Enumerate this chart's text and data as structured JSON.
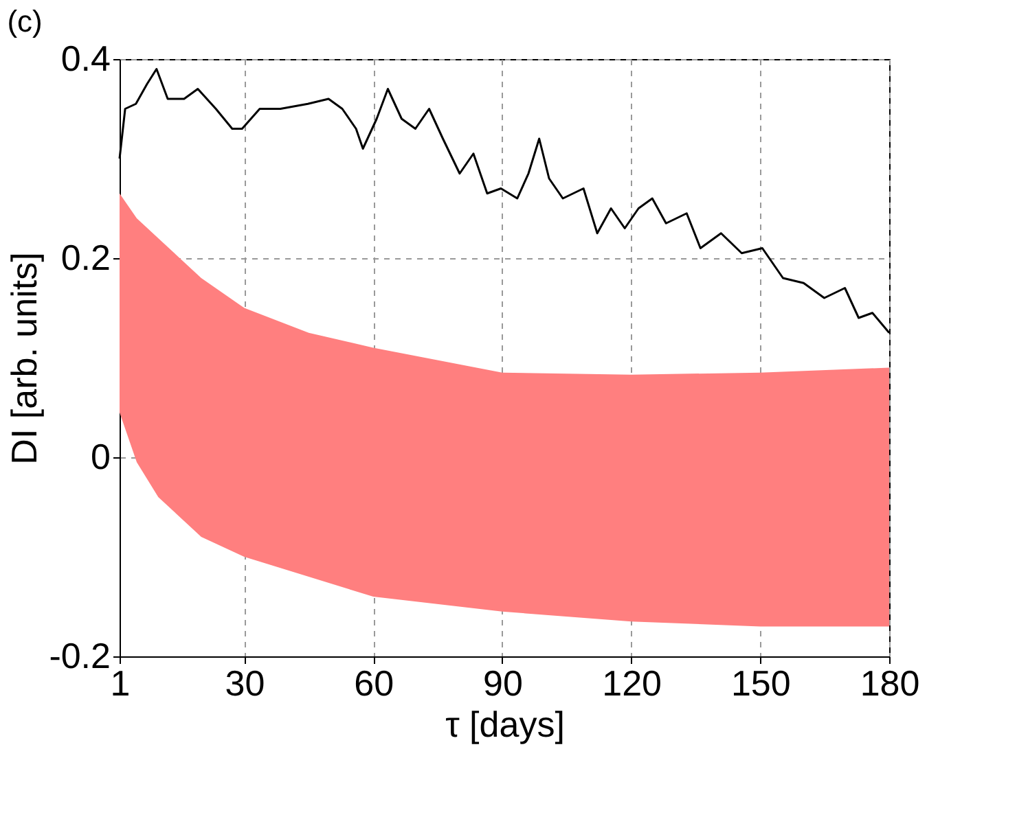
{
  "chart_data": {
    "type": "line",
    "title": "(c)",
    "xlabel": "τ [days]",
    "ylabel": "DI [arb. units]",
    "xlim": [
      1,
      180
    ],
    "xticks": [
      1,
      30,
      60,
      90,
      120,
      150,
      180
    ],
    "ylim": [
      -0.2,
      0.4
    ],
    "yticks": [
      {
        "value": -0.2,
        "label": "-0.2"
      },
      0,
      {
        "value": 0.2,
        "label": "0.2"
      },
      {
        "value": 0.4,
        "label": "0.4"
      }
    ],
    "grid": true,
    "series": [
      {
        "color": "#ff7f7f",
        "x": [
          1,
          5,
          10,
          20,
          30,
          45,
          60,
          90,
          120,
          150,
          180
        ],
        "values": [
          null,
          null,
          null,
          null,
          null,
          null,
          null,
          null,
          null,
          null,
          null
        ],
        "lower": [
          0.045,
          -0.005,
          -0.04,
          -0.08,
          -0.1,
          -0.12,
          -0.14,
          -0.155,
          -0.165,
          -0.17,
          -0.17
        ],
        "upper": [
          0.265,
          0.24,
          0.22,
          0.18,
          0.15,
          0.125,
          0.11,
          0.085,
          0.083,
          0.085,
          0.09
        ]
      },
      {
        "color": "#000000",
        "x": [
          1,
          2.3,
          4.8,
          7.4,
          9.6,
          12.2,
          16,
          19.2,
          23.4,
          27.2,
          29.5,
          33.6,
          38.4,
          44.8,
          49.6,
          52.8,
          56,
          57.6,
          60.8,
          63.4,
          66.6,
          69.8,
          73,
          76.2,
          80.1,
          83.3,
          86.5,
          89.7,
          93.5,
          96.1,
          98.6,
          100.9,
          104.1,
          108.9,
          112.1,
          115.3,
          118.5,
          121.7,
          124.9,
          128.1,
          132.9,
          136.1,
          140.9,
          145.7,
          150.5,
          155.3,
          160.1,
          164.9,
          169.7,
          172.9,
          176.1,
          180
        ],
        "values": [
          0.3,
          0.35,
          0.355,
          0.375,
          0.39,
          0.36,
          0.36,
          0.37,
          0.35,
          0.33,
          0.33,
          0.35,
          0.35,
          0.355,
          0.36,
          0.35,
          0.33,
          0.31,
          0.34,
          0.37,
          0.34,
          0.33,
          0.35,
          0.32,
          0.285,
          0.305,
          0.265,
          0.27,
          0.26,
          0.285,
          0.32,
          0.28,
          0.26,
          0.27,
          0.225,
          0.25,
          0.23,
          0.25,
          0.26,
          0.235,
          0.245,
          0.21,
          0.225,
          0.205,
          0.21,
          0.18,
          0.175,
          0.16,
          0.17,
          0.14,
          0.145,
          0.125
        ]
      }
    ]
  }
}
